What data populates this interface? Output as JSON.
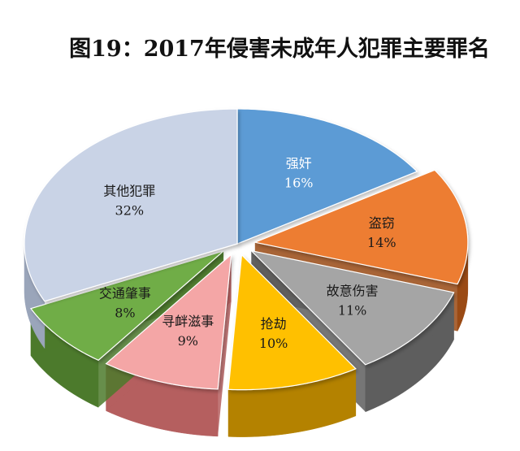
{
  "chart_data": {
    "type": "pie",
    "title": "图19：2017年侵害未成年人犯罪主要罪名",
    "slices": [
      {
        "label": "强奸",
        "value": 16,
        "display": "16%",
        "color": "#5B9BD5",
        "side": "#3E6F9E",
        "text_color": "#ffffff",
        "explode": 0
      },
      {
        "label": "盗窃",
        "value": 14,
        "display": "14%",
        "color": "#ED7D31",
        "side": "#9A4A14",
        "text_color": "#1a1a1a",
        "explode": 22
      },
      {
        "label": "故意伤害",
        "value": 11,
        "display": "11%",
        "color": "#A5A5A5",
        "side": "#5E5E5E",
        "text_color": "#1a1a1a",
        "explode": 22
      },
      {
        "label": "抢劫",
        "value": 10,
        "display": "10%",
        "color": "#FFC000",
        "side": "#B48200",
        "text_color": "#1a1a1a",
        "explode": 22
      },
      {
        "label": "寻衅滋事",
        "value": 9,
        "display": "9%",
        "color": "#F4A6A6",
        "side": "#B55F5F",
        "text_color": "#1a1a1a",
        "explode": 22
      },
      {
        "label": "交通肇事",
        "value": 8,
        "display": "8%",
        "color": "#70AD47",
        "side": "#4C7A2C",
        "text_color": "#1a1a1a",
        "explode": 22
      },
      {
        "label": "其他犯罪",
        "value": 32,
        "display": "32%",
        "color": "#C9D3E6",
        "side": "#9AA5BA",
        "text_color": "#1a1a1a",
        "explode": 0
      }
    ]
  }
}
